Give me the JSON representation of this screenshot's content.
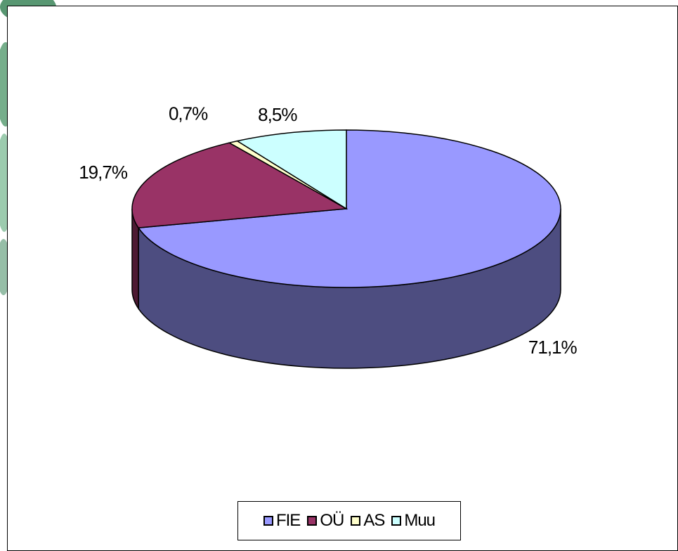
{
  "chart_data": {
    "type": "pie",
    "categories": [
      "FIE",
      "OÜ",
      "AS",
      "Muu"
    ],
    "values": [
      71.1,
      19.7,
      0.7,
      8.5
    ],
    "value_labels": [
      "71,1%",
      "19,7%",
      "0,7%",
      "8,5%"
    ],
    "colors": [
      "#9999ff",
      "#993366",
      "#ffffcc",
      "#ccffff"
    ]
  }
}
